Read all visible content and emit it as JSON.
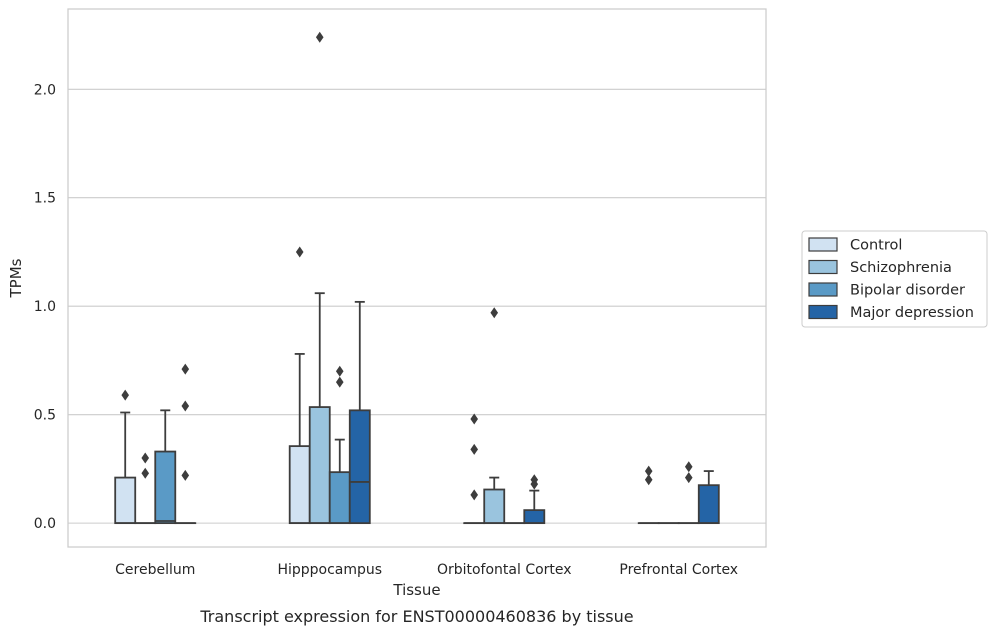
{
  "caption": "Transcript expression for ENST00000460836 by tissue",
  "chart_data": {
    "type": "box",
    "xlabel": "Tissue",
    "ylabel": "TPMs",
    "ylim": [
      -0.11,
      2.37
    ],
    "yticks": [
      0.0,
      0.5,
      1.0,
      1.5,
      2.0
    ],
    "ytick_labels": [
      "0.0",
      "0.5",
      "1.0",
      "1.5",
      "2.0"
    ],
    "grid": "horizontal",
    "legend_position": "right",
    "categories": [
      "Cerebellum",
      "Hipppocampus",
      "Orbitofontal Cortex",
      "Prefrontal Cortex"
    ],
    "series": [
      {
        "name": "Control",
        "color": "#d1e2f2",
        "boxes": [
          {
            "q1": 0.0,
            "median": 0.0,
            "q3": 0.21,
            "whisker_low": 0.0,
            "whisker_high": 0.51,
            "outliers": [
              0.59
            ]
          },
          {
            "q1": 0.0,
            "median": 0.0,
            "q3": 0.355,
            "whisker_low": 0.0,
            "whisker_high": 0.78,
            "outliers": [
              1.25
            ]
          },
          {
            "q1": 0.0,
            "median": 0.0,
            "q3": 0.0,
            "whisker_low": 0.0,
            "whisker_high": 0.0,
            "outliers": [
              0.13,
              0.34,
              0.48
            ]
          },
          {
            "q1": 0.0,
            "median": 0.0,
            "q3": 0.0,
            "whisker_low": 0.0,
            "whisker_high": 0.0,
            "outliers": [
              0.2,
              0.24
            ]
          }
        ]
      },
      {
        "name": "Schizophrenia",
        "color": "#9ac4de",
        "boxes": [
          {
            "q1": 0.0,
            "median": 0.0,
            "q3": 0.0,
            "whisker_low": 0.0,
            "whisker_high": 0.0,
            "outliers": [
              0.23,
              0.3
            ]
          },
          {
            "q1": 0.0,
            "median": 0.0,
            "q3": 0.535,
            "whisker_low": 0.0,
            "whisker_high": 1.06,
            "outliers": [
              2.24
            ]
          },
          {
            "q1": 0.0,
            "median": 0.0,
            "q3": 0.155,
            "whisker_low": 0.0,
            "whisker_high": 0.21,
            "outliers": [
              0.97
            ]
          },
          {
            "q1": 0.0,
            "median": 0.0,
            "q3": 0.0,
            "whisker_low": 0.0,
            "whisker_high": 0.0,
            "outliers": []
          }
        ]
      },
      {
        "name": "Bipolar disorder",
        "color": "#5a9ac6",
        "boxes": [
          {
            "q1": 0.0,
            "median": 0.01,
            "q3": 0.33,
            "whisker_low": 0.0,
            "whisker_high": 0.52,
            "outliers": []
          },
          {
            "q1": 0.0,
            "median": 0.0,
            "q3": 0.235,
            "whisker_low": 0.0,
            "whisker_high": 0.385,
            "outliers": [
              0.65,
              0.7
            ]
          },
          {
            "q1": 0.0,
            "median": 0.0,
            "q3": 0.0,
            "whisker_low": 0.0,
            "whisker_high": 0.0,
            "outliers": []
          },
          {
            "q1": 0.0,
            "median": 0.0,
            "q3": 0.0,
            "whisker_low": 0.0,
            "whisker_high": 0.0,
            "outliers": [
              0.21,
              0.26
            ]
          }
        ]
      },
      {
        "name": "Major depression",
        "color": "#2464a6",
        "boxes": [
          {
            "q1": 0.0,
            "median": 0.0,
            "q3": 0.0,
            "whisker_low": 0.0,
            "whisker_high": 0.0,
            "outliers": [
              0.22,
              0.54,
              0.71
            ]
          },
          {
            "q1": 0.0,
            "median": 0.19,
            "q3": 0.52,
            "whisker_low": 0.0,
            "whisker_high": 1.02,
            "outliers": []
          },
          {
            "q1": 0.0,
            "median": 0.0,
            "q3": 0.06,
            "whisker_low": 0.0,
            "whisker_high": 0.15,
            "outliers": [
              0.18,
              0.2
            ]
          },
          {
            "q1": 0.0,
            "median": 0.0,
            "q3": 0.175,
            "whisker_low": 0.0,
            "whisker_high": 0.24,
            "outliers": []
          }
        ]
      }
    ]
  }
}
